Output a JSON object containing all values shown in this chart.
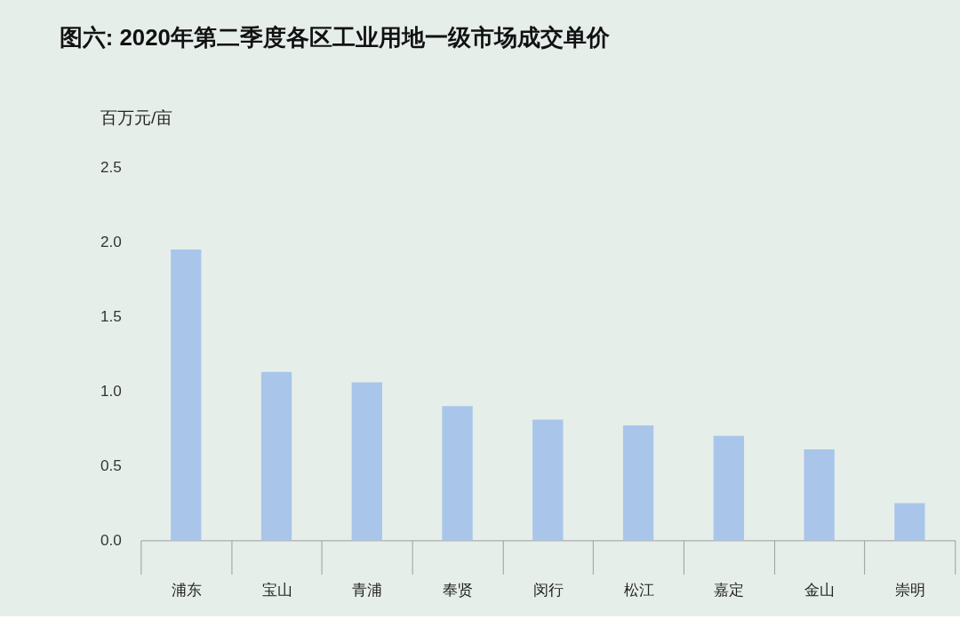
{
  "chart_data": {
    "type": "bar",
    "title": "图六: 2020年第二季度各区工业用地一级市场成交单价",
    "ylabel": "百万元/亩",
    "categories": [
      "浦东",
      "宝山",
      "青浦",
      "奉贤",
      "闵行",
      "松江",
      "嘉定",
      "金山",
      "崇明"
    ],
    "values": [
      1.95,
      1.13,
      1.06,
      0.9,
      0.81,
      0.77,
      0.7,
      0.61,
      0.25
    ],
    "color": "#a9c6ea",
    "ylim": [
      0,
      2.5
    ],
    "yticks": [
      {
        "value": 0,
        "label": "0.0"
      },
      {
        "value": 0.5,
        "label": "0.5"
      },
      {
        "value": 1,
        "label": "1.0"
      },
      {
        "value": 1.5,
        "label": "1.5"
      },
      {
        "value": 2,
        "label": "2.0"
      },
      {
        "value": 2.5,
        "label": "2.5"
      }
    ],
    "grid": false
  }
}
